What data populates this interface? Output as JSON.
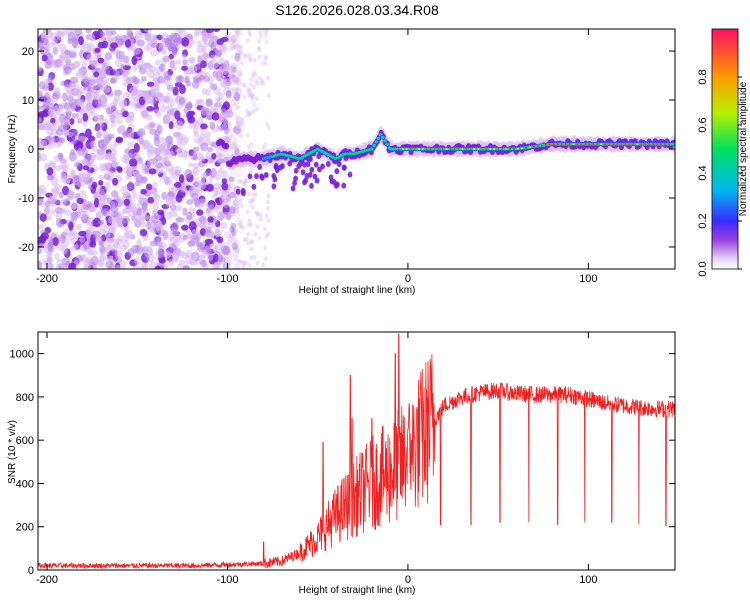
{
  "chart_data": [
    {
      "type": "heatmap",
      "title": "S126.2026.028.03.34.R08",
      "xlabel": "Height of straight line (km)",
      "ylabel": "Frequency (Hz)",
      "xlim": [
        -205,
        148
      ],
      "ylim": [
        -24.5,
        24.5
      ],
      "x_ticks": [
        -200,
        -100,
        0,
        100
      ],
      "y_ticks": [
        -20,
        -10,
        0,
        10,
        20
      ],
      "colorbar": {
        "label": "Normalized spectral amplitude",
        "range": [
          0.0,
          1.0
        ],
        "ticks": [
          0.0,
          0.2,
          0.4,
          0.6,
          0.8
        ],
        "colors": [
          "#ffffff",
          "#d8b8f0",
          "#7a1fd8",
          "#2a2aff",
          "#00c8f0",
          "#00e070",
          "#c8f000",
          "#ff8000",
          "#ff1040"
        ]
      },
      "trace": {
        "description_points_x": [
          -100,
          -90,
          -80,
          -70,
          -60,
          -50,
          -45,
          -40,
          -35,
          -30,
          -20,
          -15,
          -10,
          0,
          20,
          40,
          60,
          80,
          100,
          120,
          148
        ],
        "description_points_freq": [
          -3,
          -2,
          -2,
          -1,
          -2,
          0,
          -1,
          -2,
          -1,
          -1,
          0,
          3,
          0,
          0,
          0,
          0,
          0,
          1,
          1,
          1,
          1
        ]
      }
    },
    {
      "type": "line",
      "title": "",
      "xlabel": "Height of straight line (km)",
      "ylabel": "SNR (10 * v/v)",
      "xlim": [
        -205,
        148
      ],
      "ylim": [
        0,
        1100
      ],
      "x_ticks": [
        -200,
        -100,
        0,
        100
      ],
      "y_ticks": [
        0,
        200,
        400,
        600,
        800,
        1000
      ],
      "series": [
        {
          "name": "SNR",
          "color": "#ee2020",
          "x": [
            -205,
            -180,
            -150,
            -120,
            -100,
            -80,
            -70,
            -60,
            -50,
            -40,
            -30,
            -20,
            -10,
            0,
            10,
            15,
            20,
            30,
            40,
            50,
            60,
            70,
            80,
            90,
            100,
            110,
            120,
            130,
            140,
            148
          ],
          "values": [
            20,
            20,
            20,
            20,
            25,
            30,
            40,
            80,
            150,
            250,
            330,
            400,
            450,
            520,
            640,
            700,
            760,
            800,
            820,
            830,
            815,
            810,
            810,
            810,
            790,
            770,
            760,
            750,
            745,
            745
          ],
          "spikes_x": [
            -80,
            -47,
            -32,
            -31,
            -20,
            -7,
            -5,
            0,
            2
          ],
          "spikes_y": [
            130,
            590,
            900,
            700,
            700,
            1000,
            1090,
            650,
            600
          ],
          "dips_x": [
            18,
            35,
            51,
            67,
            83,
            98,
            113,
            128,
            143
          ],
          "dips_y": [
            210,
            210,
            220,
            220,
            210,
            220,
            220,
            210,
            205
          ]
        }
      ]
    }
  ]
}
